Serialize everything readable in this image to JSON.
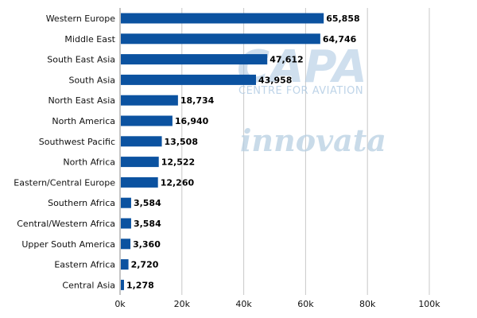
{
  "chart_data": {
    "type": "bar",
    "orientation": "horizontal",
    "categories": [
      "Western Europe",
      "Middle East",
      "South East Asia",
      "South Asia",
      "North East Asia",
      "North America",
      "Southwest Pacific",
      "North Africa",
      "Eastern/Central Europe",
      "Southern Africa",
      "Central/Western Africa",
      "Upper South America",
      "Eastern Africa",
      "Central Asia"
    ],
    "values": [
      65858,
      64746,
      47612,
      43958,
      18734,
      16940,
      13508,
      12522,
      12260,
      3584,
      3584,
      3360,
      2720,
      1278
    ],
    "value_labels": [
      "65,858",
      "64,746",
      "47,612",
      "43,958",
      "18,734",
      "16,940",
      "13,508",
      "12,522",
      "12,260",
      "3,584",
      "3,584",
      "3,360",
      "2,720",
      "1,278"
    ],
    "xlim": [
      0,
      100000
    ],
    "xticks": [
      0,
      20000,
      40000,
      60000,
      80000,
      100000
    ],
    "xtick_labels": [
      "0k",
      "20k",
      "40k",
      "60k",
      "80k",
      "100k"
    ],
    "title": "",
    "xlabel": "",
    "ylabel": "",
    "grid": "vertical",
    "legend": "none",
    "bar_color": "#0b52a0",
    "grid_color": "#c8c8c8"
  },
  "watermarks": {
    "capa_logo": "CAPA",
    "capa_subtitle": "CENTRE FOR AVIATION",
    "innovata_logo": "innovata"
  }
}
